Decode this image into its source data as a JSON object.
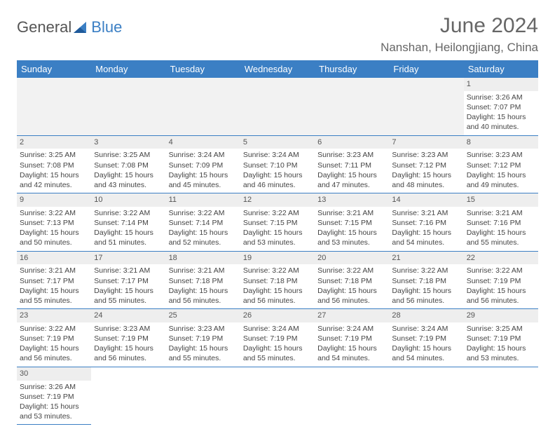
{
  "logo": {
    "text1": "General",
    "text2": "Blue"
  },
  "title": "June 2024",
  "location": "Nanshan, Heilongjiang, China",
  "colors": {
    "header_bg": "#3b7fc4",
    "header_text": "#ffffff",
    "daynum_bg": "#eeeeee",
    "row_border": "#3b7fc4",
    "text": "#444444",
    "title_text": "#666666"
  },
  "daysOfWeek": [
    "Sunday",
    "Monday",
    "Tuesday",
    "Wednesday",
    "Thursday",
    "Friday",
    "Saturday"
  ],
  "firstWeekday": 6,
  "daysInMonth": 30,
  "days": {
    "1": {
      "sunrise": "3:26 AM",
      "sunset": "7:07 PM",
      "daylight": "15 hours and 40 minutes."
    },
    "2": {
      "sunrise": "3:25 AM",
      "sunset": "7:08 PM",
      "daylight": "15 hours and 42 minutes."
    },
    "3": {
      "sunrise": "3:25 AM",
      "sunset": "7:08 PM",
      "daylight": "15 hours and 43 minutes."
    },
    "4": {
      "sunrise": "3:24 AM",
      "sunset": "7:09 PM",
      "daylight": "15 hours and 45 minutes."
    },
    "5": {
      "sunrise": "3:24 AM",
      "sunset": "7:10 PM",
      "daylight": "15 hours and 46 minutes."
    },
    "6": {
      "sunrise": "3:23 AM",
      "sunset": "7:11 PM",
      "daylight": "15 hours and 47 minutes."
    },
    "7": {
      "sunrise": "3:23 AM",
      "sunset": "7:12 PM",
      "daylight": "15 hours and 48 minutes."
    },
    "8": {
      "sunrise": "3:23 AM",
      "sunset": "7:12 PM",
      "daylight": "15 hours and 49 minutes."
    },
    "9": {
      "sunrise": "3:22 AM",
      "sunset": "7:13 PM",
      "daylight": "15 hours and 50 minutes."
    },
    "10": {
      "sunrise": "3:22 AM",
      "sunset": "7:14 PM",
      "daylight": "15 hours and 51 minutes."
    },
    "11": {
      "sunrise": "3:22 AM",
      "sunset": "7:14 PM",
      "daylight": "15 hours and 52 minutes."
    },
    "12": {
      "sunrise": "3:22 AM",
      "sunset": "7:15 PM",
      "daylight": "15 hours and 53 minutes."
    },
    "13": {
      "sunrise": "3:21 AM",
      "sunset": "7:15 PM",
      "daylight": "15 hours and 53 minutes."
    },
    "14": {
      "sunrise": "3:21 AM",
      "sunset": "7:16 PM",
      "daylight": "15 hours and 54 minutes."
    },
    "15": {
      "sunrise": "3:21 AM",
      "sunset": "7:16 PM",
      "daylight": "15 hours and 55 minutes."
    },
    "16": {
      "sunrise": "3:21 AM",
      "sunset": "7:17 PM",
      "daylight": "15 hours and 55 minutes."
    },
    "17": {
      "sunrise": "3:21 AM",
      "sunset": "7:17 PM",
      "daylight": "15 hours and 55 minutes."
    },
    "18": {
      "sunrise": "3:21 AM",
      "sunset": "7:18 PM",
      "daylight": "15 hours and 56 minutes."
    },
    "19": {
      "sunrise": "3:22 AM",
      "sunset": "7:18 PM",
      "daylight": "15 hours and 56 minutes."
    },
    "20": {
      "sunrise": "3:22 AM",
      "sunset": "7:18 PM",
      "daylight": "15 hours and 56 minutes."
    },
    "21": {
      "sunrise": "3:22 AM",
      "sunset": "7:18 PM",
      "daylight": "15 hours and 56 minutes."
    },
    "22": {
      "sunrise": "3:22 AM",
      "sunset": "7:19 PM",
      "daylight": "15 hours and 56 minutes."
    },
    "23": {
      "sunrise": "3:22 AM",
      "sunset": "7:19 PM",
      "daylight": "15 hours and 56 minutes."
    },
    "24": {
      "sunrise": "3:23 AM",
      "sunset": "7:19 PM",
      "daylight": "15 hours and 56 minutes."
    },
    "25": {
      "sunrise": "3:23 AM",
      "sunset": "7:19 PM",
      "daylight": "15 hours and 55 minutes."
    },
    "26": {
      "sunrise": "3:24 AM",
      "sunset": "7:19 PM",
      "daylight": "15 hours and 55 minutes."
    },
    "27": {
      "sunrise": "3:24 AM",
      "sunset": "7:19 PM",
      "daylight": "15 hours and 54 minutes."
    },
    "28": {
      "sunrise": "3:24 AM",
      "sunset": "7:19 PM",
      "daylight": "15 hours and 54 minutes."
    },
    "29": {
      "sunrise": "3:25 AM",
      "sunset": "7:19 PM",
      "daylight": "15 hours and 53 minutes."
    },
    "30": {
      "sunrise": "3:26 AM",
      "sunset": "7:19 PM",
      "daylight": "15 hours and 53 minutes."
    }
  },
  "labels": {
    "sunrise": "Sunrise: ",
    "sunset": "Sunset: ",
    "daylight": "Daylight: "
  }
}
